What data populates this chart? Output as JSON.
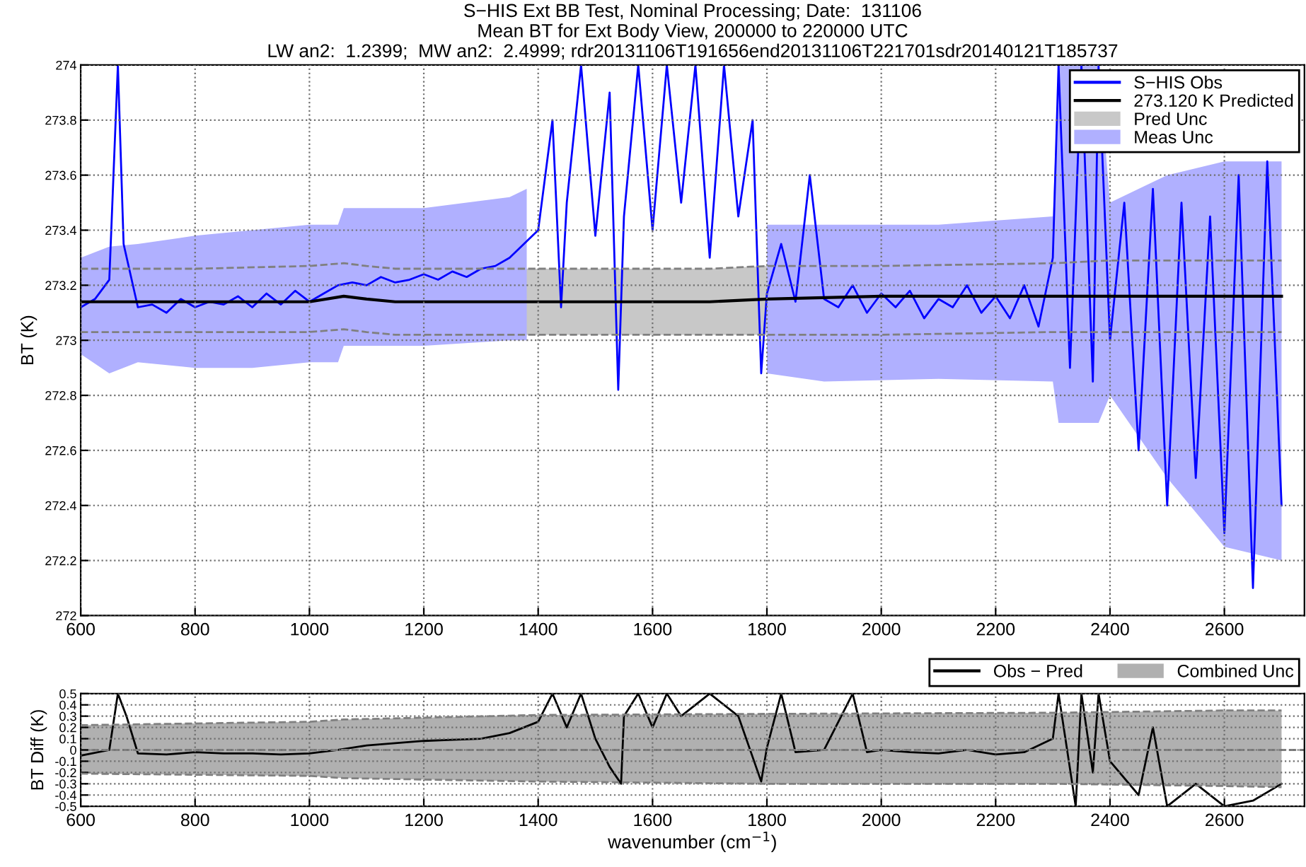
{
  "chart_data": [
    {
      "type": "line",
      "title": "S−HIS Ext BB Test, Nominal Processing; Date:  131106\nMean BT for Ext Body View, 200000 to 220000 UTC\nLW an2:  1.2399;  MW an2:  2.4999; rdr20131106T191656end20131106T221701sdr20140121T185737",
      "ylabel": "BT (K)",
      "xlim": [
        600,
        2740
      ],
      "xticks": [
        600,
        800,
        1000,
        1200,
        1400,
        1600,
        1800,
        2000,
        2200,
        2400,
        2600
      ],
      "ylim": [
        272,
        274
      ],
      "yticks": [
        272,
        272.2,
        272.4,
        272.6,
        272.8,
        273,
        273.2,
        273.4,
        273.6,
        273.8,
        274
      ],
      "grid": true,
      "legend": "upper right",
      "series": [
        {
          "name": "S−HIS Obs",
          "color": "#0000ff",
          "x": [
            600,
            625,
            650,
            665,
            675,
            700,
            725,
            750,
            775,
            800,
            825,
            850,
            875,
            900,
            925,
            950,
            975,
            1000,
            1025,
            1050,
            1075,
            1100,
            1125,
            1150,
            1175,
            1200,
            1225,
            1250,
            1275,
            1300,
            1325,
            1350,
            1375,
            1400,
            1425,
            1440,
            1450,
            1475,
            1500,
            1525,
            1540,
            1550,
            1575,
            1600,
            1625,
            1650,
            1675,
            1700,
            1725,
            1750,
            1775,
            1790,
            1800,
            1825,
            1850,
            1875,
            1900,
            1925,
            1950,
            1975,
            2000,
            2025,
            2050,
            2075,
            2100,
            2125,
            2150,
            2175,
            2200,
            2225,
            2250,
            2275,
            2300,
            2310,
            2330,
            2350,
            2370,
            2380,
            2400,
            2425,
            2450,
            2475,
            2500,
            2525,
            2550,
            2575,
            2600,
            2625,
            2650,
            2675,
            2700
          ],
          "values": [
            273.12,
            273.15,
            273.22,
            274.0,
            273.35,
            273.12,
            273.13,
            273.1,
            273.15,
            273.12,
            273.14,
            273.13,
            273.16,
            273.12,
            273.17,
            273.13,
            273.18,
            273.14,
            273.17,
            273.2,
            273.21,
            273.2,
            273.23,
            273.21,
            273.22,
            273.24,
            273.22,
            273.25,
            273.23,
            273.26,
            273.27,
            273.3,
            273.35,
            273.4,
            273.8,
            273.12,
            273.5,
            274.0,
            273.38,
            273.9,
            272.82,
            273.45,
            274.0,
            273.4,
            274.0,
            273.5,
            274.0,
            273.3,
            274.0,
            273.45,
            273.8,
            272.88,
            273.17,
            273.35,
            273.14,
            273.6,
            273.15,
            273.12,
            273.2,
            273.1,
            273.17,
            273.12,
            273.18,
            273.08,
            273.15,
            273.12,
            273.2,
            273.1,
            273.16,
            273.08,
            273.2,
            273.05,
            273.3,
            274.0,
            272.9,
            274.0,
            272.85,
            274.0,
            273.0,
            273.5,
            272.6,
            273.55,
            272.4,
            273.5,
            272.5,
            273.45,
            272.3,
            273.6,
            272.1,
            273.65,
            272.4
          ]
        },
        {
          "name": "273.120 K Predicted",
          "color": "#000000",
          "x": [
            600,
            800,
            1000,
            1060,
            1100,
            1150,
            1400,
            1700,
            1800,
            2000,
            2400,
            2700
          ],
          "values": [
            273.14,
            273.14,
            273.14,
            273.16,
            273.15,
            273.14,
            273.14,
            273.14,
            273.15,
            273.16,
            273.16,
            273.16
          ]
        },
        {
          "type": "line",
          "color": "#808080",
          "line_style": "dashed",
          "x": [
            600,
            800,
            1000,
            1060,
            1100,
            1150,
            1400,
            1700,
            1800,
            2000,
            2300,
            2400,
            2700
          ],
          "values": [
            273.26,
            273.26,
            273.27,
            273.28,
            273.27,
            273.26,
            273.26,
            273.26,
            273.27,
            273.27,
            273.28,
            273.29,
            273.29
          ]
        },
        {
          "type": "line",
          "color": "#808080",
          "line_style": "dashed",
          "x": [
            600,
            800,
            1000,
            1060,
            1100,
            1150,
            1400,
            1700,
            1800,
            2000,
            2300,
            2400,
            2700
          ],
          "values": [
            273.03,
            273.03,
            273.03,
            273.04,
            273.03,
            273.02,
            273.02,
            273.02,
            273.02,
            273.02,
            273.03,
            273.03,
            273.03
          ]
        },
        {
          "name": "Pred Unc",
          "type": "area",
          "color": "#c8c8c8",
          "x": [
            600,
            800,
            1000,
            1060,
            1100,
            1150,
            1400,
            1700,
            1800,
            2000,
            2300,
            2400,
            2700
          ],
          "values": [
            null,
            null,
            null,
            null,
            null,
            null,
            null,
            null,
            null,
            null,
            null,
            null,
            null
          ],
          "upper": [
            273.26,
            273.26,
            273.27,
            273.28,
            273.27,
            273.26,
            273.26,
            273.26,
            273.27,
            273.27,
            273.28,
            273.29,
            273.29
          ],
          "lower": [
            273.03,
            273.03,
            273.03,
            273.04,
            273.03,
            273.02,
            273.02,
            273.02,
            273.02,
            273.02,
            273.03,
            273.03,
            273.03
          ]
        },
        {
          "name": "Meas Unc",
          "type": "area",
          "color": "#b0b0ff",
          "x": [
            600,
            650,
            700,
            800,
            900,
            1000,
            1050,
            1060,
            1200,
            1350,
            1380,
            1400,
            1800,
            1900,
            2100,
            2300,
            2310,
            2380,
            2400,
            2500,
            2600,
            2700
          ],
          "values": [
            null,
            null,
            null,
            null,
            null,
            null,
            null,
            null,
            null,
            null,
            null,
            null,
            null,
            null,
            null,
            null,
            null,
            null,
            null,
            null,
            null,
            null
          ],
          "upper": [
            273.3,
            273.34,
            273.35,
            273.38,
            273.4,
            273.42,
            273.42,
            273.48,
            273.48,
            273.52,
            273.55,
            null,
            273.42,
            273.42,
            273.42,
            273.45,
            274.0,
            274.0,
            273.5,
            273.6,
            273.65,
            273.65
          ],
          "lower": [
            272.95,
            272.88,
            272.92,
            272.9,
            272.9,
            272.92,
            272.92,
            272.98,
            272.98,
            273.0,
            273.0,
            null,
            272.88,
            272.85,
            272.86,
            272.85,
            272.7,
            272.7,
            272.8,
            272.5,
            272.25,
            272.2
          ]
        }
      ]
    },
    {
      "type": "line",
      "xlabel": "wavenumber (cm$^{−1}$)",
      "ylabel": "BT Diff (K)",
      "xlim": [
        600,
        2740
      ],
      "xticks": [
        600,
        800,
        1000,
        1200,
        1400,
        1600,
        1800,
        2000,
        2200,
        2400,
        2600
      ],
      "ylim": [
        -0.5,
        0.5
      ],
      "yticks": [
        -0.5,
        -0.4,
        -0.3,
        -0.2,
        -0.1,
        0,
        0.1,
        0.2,
        0.3,
        0.4,
        0.5
      ],
      "grid": true,
      "legend": "top right",
      "ref_lines": [
        {
          "axis": "y",
          "value": 0,
          "color": "#808080",
          "line_style": "dashed"
        }
      ],
      "series": [
        {
          "name": "Obs − Pred",
          "color": "#000000",
          "x": [
            600,
            650,
            665,
            680,
            700,
            750,
            800,
            850,
            900,
            950,
            1000,
            1050,
            1100,
            1150,
            1200,
            1250,
            1300,
            1350,
            1400,
            1425,
            1450,
            1475,
            1500,
            1525,
            1545,
            1550,
            1575,
            1600,
            1625,
            1650,
            1700,
            1750,
            1790,
            1800,
            1825,
            1850,
            1900,
            1950,
            1975,
            2000,
            2050,
            2100,
            2150,
            2200,
            2250,
            2300,
            2310,
            2340,
            2350,
            2370,
            2380,
            2400,
            2450,
            2475,
            2500,
            2550,
            2600,
            2650,
            2700
          ],
          "values": [
            -0.05,
            0.0,
            0.5,
            0.3,
            -0.03,
            -0.04,
            -0.02,
            -0.03,
            -0.03,
            -0.04,
            -0.03,
            0.0,
            0.04,
            0.06,
            0.08,
            0.09,
            0.1,
            0.15,
            0.25,
            0.5,
            0.2,
            0.5,
            0.1,
            -0.15,
            -0.3,
            0.3,
            0.5,
            0.2,
            0.5,
            0.3,
            0.5,
            0.3,
            -0.28,
            0.02,
            0.5,
            -0.02,
            0.0,
            0.5,
            -0.02,
            0.0,
            -0.02,
            -0.03,
            0.0,
            -0.04,
            -0.02,
            0.1,
            0.5,
            -0.5,
            0.5,
            -0.2,
            0.5,
            -0.1,
            -0.4,
            0.2,
            -0.5,
            -0.3,
            -0.5,
            -0.45,
            -0.3
          ]
        },
        {
          "type": "line",
          "color": "#808080",
          "line_style": "dashed",
          "x": [
            600,
            1000,
            1060,
            1400,
            1800,
            2300,
            2600,
            2700
          ],
          "values": [
            0.22,
            0.25,
            0.27,
            0.31,
            0.32,
            0.33,
            0.35,
            0.35
          ]
        },
        {
          "type": "line",
          "color": "#808080",
          "line_style": "dashed",
          "x": [
            600,
            1000,
            1060,
            1400,
            1800,
            2300,
            2600,
            2700
          ],
          "values": [
            -0.21,
            -0.23,
            -0.25,
            -0.28,
            -0.3,
            -0.3,
            -0.32,
            -0.33
          ]
        },
        {
          "name": "Combined Unc",
          "type": "area",
          "color": "#b0b0b0",
          "x": [
            600,
            1000,
            1060,
            1400,
            1800,
            2300,
            2600,
            2700
          ],
          "values": [
            null,
            null,
            null,
            null,
            null,
            null,
            null,
            null
          ],
          "upper": [
            0.22,
            0.25,
            0.27,
            0.31,
            0.32,
            0.33,
            0.35,
            0.35
          ],
          "lower": [
            -0.21,
            -0.23,
            -0.25,
            -0.28,
            -0.3,
            -0.3,
            -0.32,
            -0.33
          ]
        }
      ]
    }
  ]
}
